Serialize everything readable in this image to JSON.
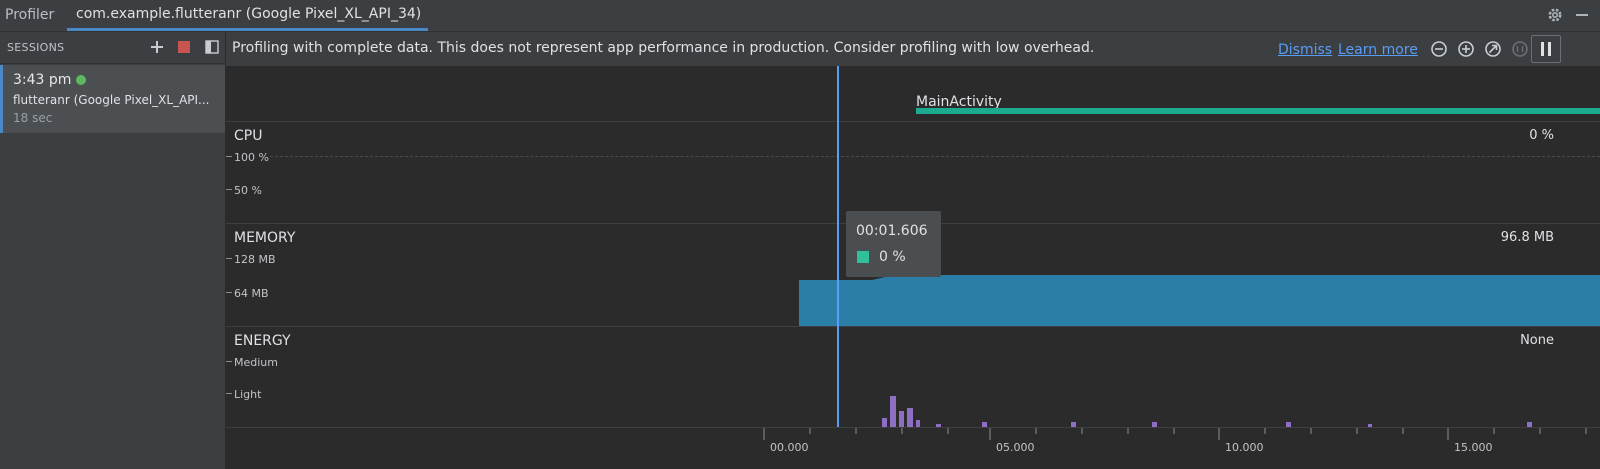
{
  "app": {
    "title": "Profiler",
    "device_tab": "com.example.flutteranr (Google Pixel_XL_API_34)"
  },
  "toolbar_icons": [
    "gear-icon",
    "minimize-icon"
  ],
  "sidebar": {
    "header": "SESSIONS",
    "icons": [
      "add-icon",
      "stop-icon",
      "toggle-panel-icon"
    ],
    "session": {
      "time": "3:43 pm",
      "name": "flutteranr (Google Pixel_XL_API...",
      "duration": "18 sec",
      "status_color": "#5fb85f"
    }
  },
  "banner": {
    "text": "Profiling with complete data. This does not represent app performance in production. Consider profiling with low overhead.",
    "dismiss": "Dismiss",
    "learn_more": "Learn more",
    "icons": [
      "zoom-out-icon",
      "zoom-in-icon",
      "reset-zoom-icon",
      "live-icon",
      "pause-icon"
    ]
  },
  "activity": {
    "label": "MainActivity",
    "color": "#1cab91"
  },
  "cpu": {
    "title": "CPU",
    "value": "0 %",
    "ticks": [
      "100 %",
      "50 %"
    ]
  },
  "memory": {
    "title": "MEMORY",
    "value": "96.8 MB",
    "ticks": [
      "128 MB",
      "64 MB"
    ],
    "color": "#2b7ea8"
  },
  "energy": {
    "title": "ENERGY",
    "value": "None",
    "ticks": [
      "Medium",
      "Light"
    ],
    "color": "#8e6fc4"
  },
  "tooltip": {
    "time": "00:01.606",
    "value": "0 %",
    "swatch_color": "#2fbf99"
  },
  "time_axis": {
    "labels": [
      "00.000",
      "05.000",
      "10.000",
      "15.000"
    ]
  },
  "colors": {
    "accent": "#4a88c7",
    "link": "#589df6",
    "cursor": "#589df6"
  }
}
